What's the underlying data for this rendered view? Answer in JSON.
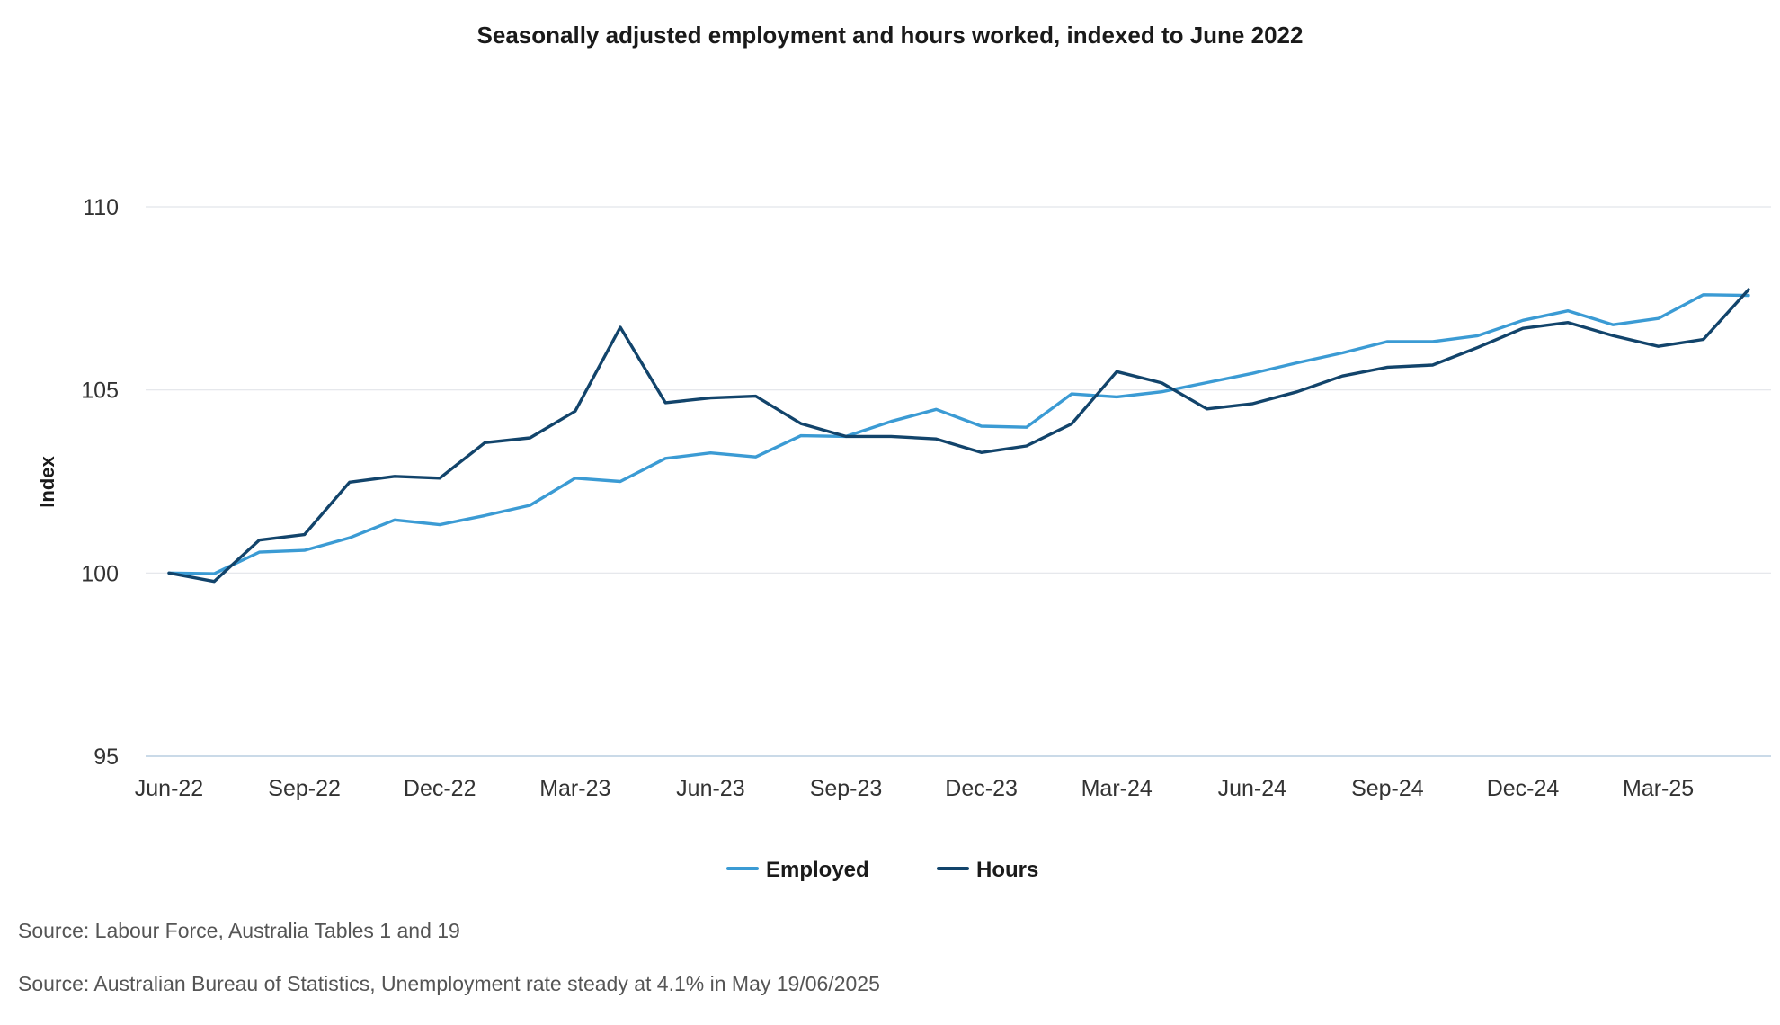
{
  "chart_data": {
    "type": "line",
    "title": "Seasonally adjusted employment and hours worked, indexed to June 2022",
    "ylabel": "Index",
    "xlabel": "",
    "ylim": [
      95,
      110
    ],
    "yticks": [
      "95",
      "100",
      "105",
      "110"
    ],
    "x": [
      "Jun-22",
      "Jul-22",
      "Aug-22",
      "Sep-22",
      "Oct-22",
      "Nov-22",
      "Dec-22",
      "Jan-23",
      "Feb-23",
      "Mar-23",
      "Apr-23",
      "May-23",
      "Jun-23",
      "Jul-23",
      "Aug-23",
      "Sep-23",
      "Oct-23",
      "Nov-23",
      "Dec-23",
      "Jan-24",
      "Feb-24",
      "Mar-24",
      "Apr-24",
      "May-24",
      "Jun-24",
      "Jul-24",
      "Aug-24",
      "Sep-24",
      "Oct-24",
      "Nov-24",
      "Dec-24",
      "Jan-25",
      "Feb-25",
      "Mar-25",
      "Apr-25",
      "May-25"
    ],
    "xtick_labels": [
      "Jun-22",
      "Sep-22",
      "Dec-22",
      "Mar-23",
      "Jun-23",
      "Sep-23",
      "Dec-23",
      "Mar-24",
      "Jun-24",
      "Sep-24",
      "Dec-24",
      "Mar-25"
    ],
    "grid": true,
    "legend_position": "bottom",
    "series": [
      {
        "name": "Employed",
        "color": "#3b9bd4",
        "values": [
          100.0,
          99.98,
          100.57,
          100.62,
          100.96,
          101.45,
          101.32,
          101.57,
          101.85,
          102.59,
          102.5,
          103.13,
          103.28,
          103.17,
          103.75,
          103.73,
          104.14,
          104.47,
          104.01,
          103.98,
          104.89,
          104.81,
          104.95,
          105.2,
          105.45,
          105.74,
          106.01,
          106.32,
          106.32,
          106.48,
          106.9,
          107.16,
          106.78,
          106.95,
          107.6,
          107.58
        ]
      },
      {
        "name": "Hours",
        "color": "#12446b",
        "values": [
          100.0,
          99.77,
          100.9,
          101.05,
          102.48,
          102.64,
          102.59,
          103.56,
          103.69,
          104.42,
          106.71,
          104.65,
          104.78,
          104.83,
          104.08,
          103.73,
          103.73,
          103.66,
          103.29,
          103.47,
          104.07,
          105.5,
          105.19,
          104.48,
          104.62,
          104.95,
          105.38,
          105.62,
          105.68,
          106.16,
          106.68,
          106.84,
          106.48,
          106.19,
          106.38,
          107.74
        ]
      }
    ]
  },
  "source": {
    "line1": "Source: Labour Force, Australia Tables 1 and 19",
    "line2": "Source: Australian Bureau of Statistics, Unemployment rate steady at 4.1% in May 19/06/2025"
  }
}
